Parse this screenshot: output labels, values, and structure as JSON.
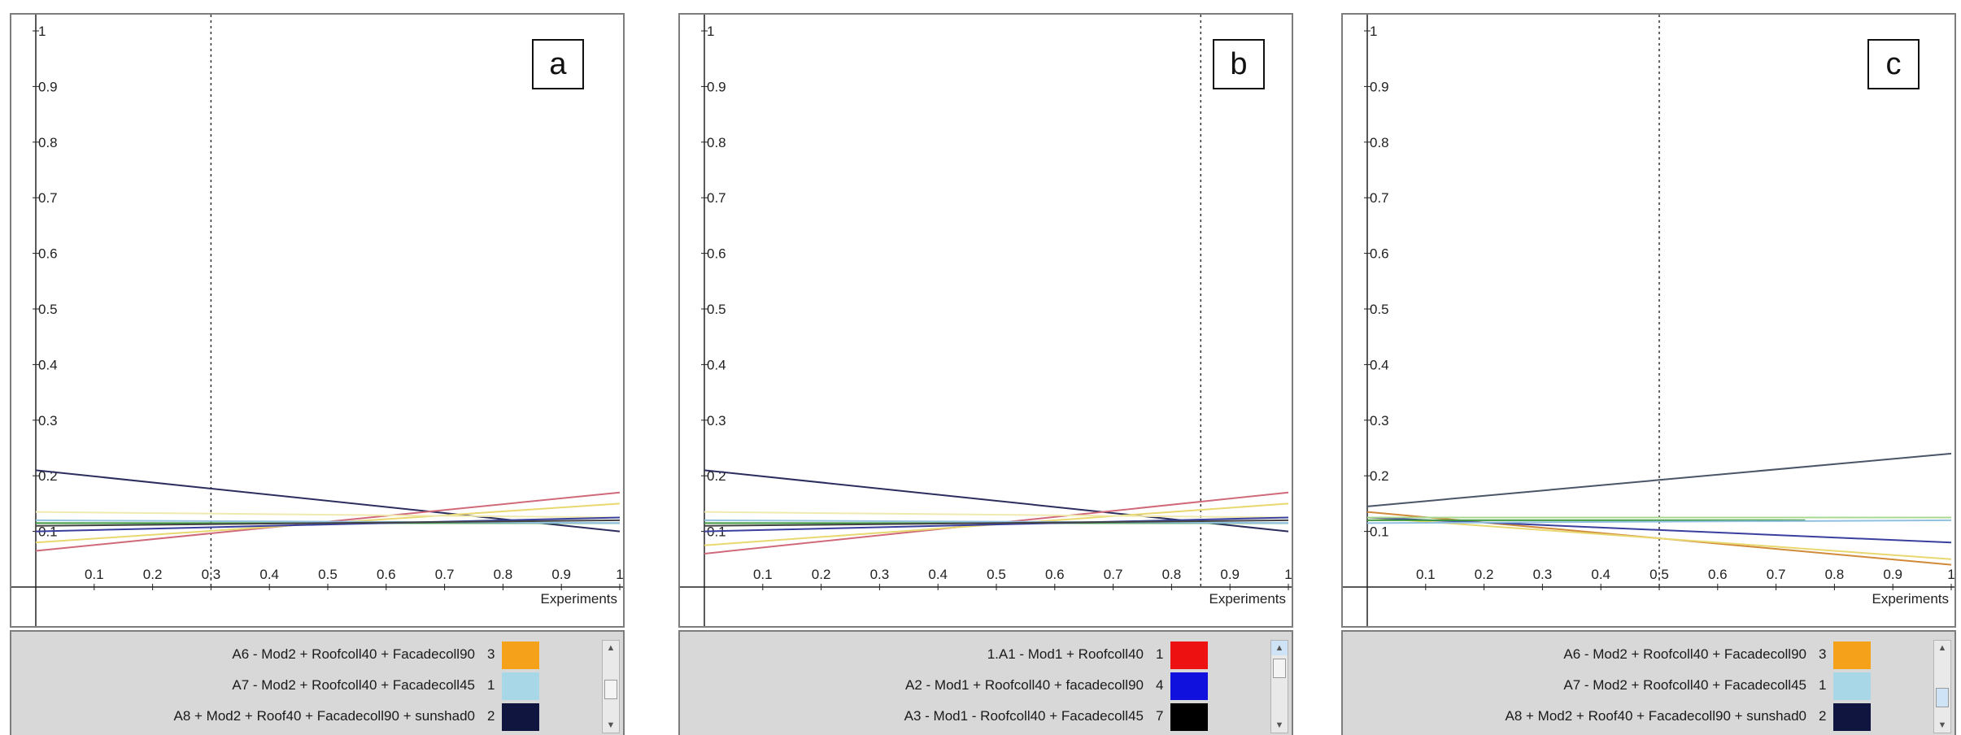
{
  "chart_data": [
    {
      "type": "line",
      "panel_label": "a",
      "xlabel": "Experiments",
      "ylabel": "",
      "xlim": [
        0,
        1
      ],
      "ylim": [
        0,
        1
      ],
      "x_ticks": [
        "0.1",
        "0.2",
        "0.3",
        "0.4",
        "0.5",
        "0.6",
        "0.7",
        "0.8",
        "0.9",
        "1"
      ],
      "y_ticks": [
        "0.1",
        "0.2",
        "0.3",
        "0.4",
        "0.5",
        "0.6",
        "0.7",
        "0.8",
        "0.9",
        "1"
      ],
      "marker_x": 0.3,
      "series": [
        {
          "color": "#2b2d5e",
          "x": [
            0,
            1
          ],
          "y": [
            0.21,
            0.1
          ]
        },
        {
          "color": "#d06a7a",
          "x": [
            0,
            1
          ],
          "y": [
            0.065,
            0.17
          ]
        },
        {
          "color": "#e8d870",
          "x": [
            0,
            1
          ],
          "y": [
            0.08,
            0.15
          ]
        },
        {
          "color": "#f0eab0",
          "x": [
            0,
            1
          ],
          "y": [
            0.135,
            0.125
          ]
        },
        {
          "color": "#3f9a3f",
          "x": [
            0,
            1
          ],
          "y": [
            0.115,
            0.115
          ]
        },
        {
          "color": "#8fc0e0",
          "x": [
            0,
            1
          ],
          "y": [
            0.12,
            0.115
          ]
        },
        {
          "color": "#3a3f9e",
          "x": [
            0,
            1
          ],
          "y": [
            0.1,
            0.125
          ]
        },
        {
          "color": "#444444",
          "x": [
            0,
            1
          ],
          "y": [
            0.11,
            0.12
          ]
        }
      ],
      "legend": [
        {
          "label": "A6 - Mod2 + Roofcoll40 + Facadecoll90",
          "rank": "3",
          "color": "#f5a11a"
        },
        {
          "label": "A7 - Mod2 + Roofcoll40 + Facadecoll45",
          "rank": "1",
          "color": "#a8d8e8"
        },
        {
          "label": "A8 + Mod2 + Roof40 + Facadecoll90 + sunshad0",
          "rank": "2",
          "color": "#10153f"
        }
      ]
    },
    {
      "type": "line",
      "panel_label": "b",
      "xlabel": "Experiments",
      "ylabel": "",
      "xlim": [
        0,
        1
      ],
      "ylim": [
        0,
        1
      ],
      "x_ticks": [
        "0.1",
        "0.2",
        "0.3",
        "0.4",
        "0.5",
        "0.6",
        "0.7",
        "0.8",
        "0.9",
        "1"
      ],
      "y_ticks": [
        "0.1",
        "0.2",
        "0.3",
        "0.4",
        "0.5",
        "0.6",
        "0.7",
        "0.8",
        "0.9",
        "1"
      ],
      "marker_x": 0.85,
      "series": [
        {
          "color": "#2b2d5e",
          "x": [
            0,
            1
          ],
          "y": [
            0.21,
            0.1
          ]
        },
        {
          "color": "#d06a7a",
          "x": [
            0,
            1
          ],
          "y": [
            0.06,
            0.17
          ]
        },
        {
          "color": "#e8d870",
          "x": [
            0,
            1
          ],
          "y": [
            0.075,
            0.15
          ]
        },
        {
          "color": "#f0eab0",
          "x": [
            0,
            1
          ],
          "y": [
            0.135,
            0.125
          ]
        },
        {
          "color": "#3f9a3f",
          "x": [
            0,
            1
          ],
          "y": [
            0.115,
            0.115
          ]
        },
        {
          "color": "#8fc0e0",
          "x": [
            0,
            1
          ],
          "y": [
            0.12,
            0.115
          ]
        },
        {
          "color": "#3a3f9e",
          "x": [
            0,
            1
          ],
          "y": [
            0.1,
            0.125
          ]
        },
        {
          "color": "#444444",
          "x": [
            0,
            1
          ],
          "y": [
            0.11,
            0.12
          ]
        }
      ],
      "legend": [
        {
          "label": "1.A1 - Mod1 + Roofcoll40",
          "rank": "1",
          "color": "#ee1111"
        },
        {
          "label": "A2 - Mod1 + Roofcoll40 + facadecoll90",
          "rank": "4",
          "color": "#1111dd"
        },
        {
          "label": "A3 - Mod1 - Roofcoll40 + Facadecoll45",
          "rank": "7",
          "color": "#000000"
        }
      ]
    },
    {
      "type": "line",
      "panel_label": "c",
      "xlabel": "Experiments",
      "ylabel": "",
      "xlim": [
        0,
        1
      ],
      "ylim": [
        0,
        1
      ],
      "x_ticks": [
        "0.1",
        "0.2",
        "0.3",
        "0.4",
        "0.5",
        "0.6",
        "0.7",
        "0.8",
        "0.9",
        "1"
      ],
      "y_ticks": [
        "0.1",
        "0.2",
        "0.3",
        "0.4",
        "0.5",
        "0.6",
        "0.7",
        "0.8",
        "0.9",
        "1"
      ],
      "marker_x": 0.5,
      "series": [
        {
          "color": "#4a5568",
          "x": [
            0,
            1
          ],
          "y": [
            0.145,
            0.24
          ]
        },
        {
          "color": "#d08a3a",
          "x": [
            0,
            1
          ],
          "y": [
            0.135,
            0.04
          ]
        },
        {
          "color": "#e8d870",
          "x": [
            0,
            1
          ],
          "y": [
            0.125,
            0.05
          ]
        },
        {
          "color": "#3a3f9e",
          "x": [
            0,
            1
          ],
          "y": [
            0.125,
            0.08
          ]
        },
        {
          "color": "#3f9a3f",
          "x": [
            0,
            0.75
          ],
          "y": [
            0.12,
            0.12
          ]
        },
        {
          "color": "#a8d890",
          "x": [
            0,
            1
          ],
          "y": [
            0.125,
            0.125
          ]
        },
        {
          "color": "#8fc0e0",
          "x": [
            0,
            1
          ],
          "y": [
            0.115,
            0.12
          ]
        }
      ],
      "legend": [
        {
          "label": "A6 - Mod2 + Roofcoll40 + Facadecoll90",
          "rank": "3",
          "color": "#f5a11a"
        },
        {
          "label": "A7 - Mod2 + Roofcoll40 + Facadecoll45",
          "rank": "1",
          "color": "#a8d8e8"
        },
        {
          "label": "A8 + Mod2 + Roof40 + Facadecoll90 + sunshad0",
          "rank": "2",
          "color": "#10153f"
        }
      ]
    }
  ]
}
